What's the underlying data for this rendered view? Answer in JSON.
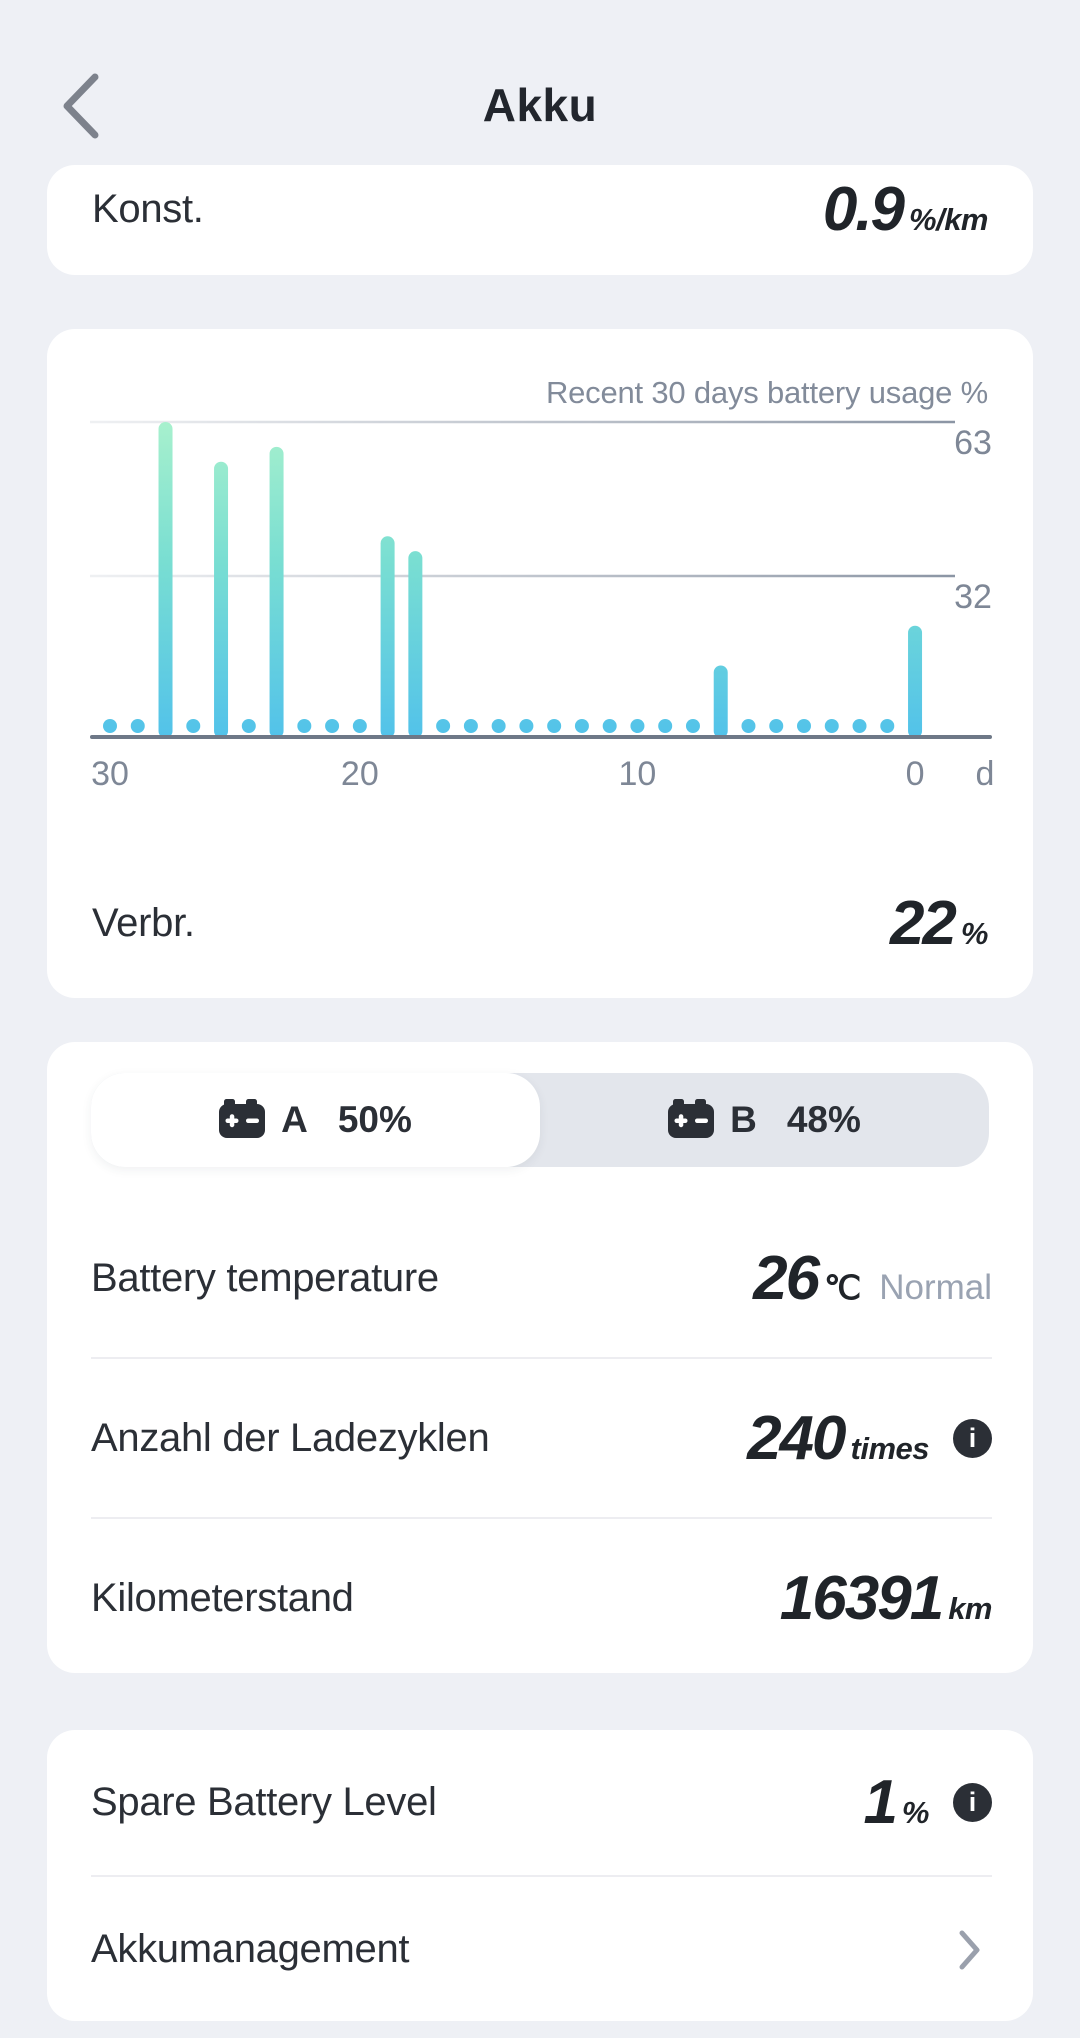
{
  "header": {
    "title": "Akku"
  },
  "top_card": {
    "label": "Konst.",
    "value": "0.9",
    "unit": "%/km"
  },
  "chart_card": {
    "title": "Recent 30 days battery usage %",
    "bottom_row": {
      "label": "Verbr.",
      "value": "22",
      "unit": "%"
    }
  },
  "chart_data": {
    "type": "bar",
    "title": "Recent 30 days battery usage %",
    "x_axis_unit_label": "d",
    "x_tick_labels": [
      "30",
      "20",
      "10",
      "0"
    ],
    "x_tick_days": [
      30,
      20,
      10,
      0
    ],
    "y_gridlines": [
      63,
      32
    ],
    "ylim": [
      0,
      63
    ],
    "days_ago": [
      29,
      28,
      27,
      26,
      25,
      24,
      23,
      22,
      21,
      20,
      19,
      18,
      17,
      16,
      15,
      14,
      13,
      12,
      11,
      10,
      9,
      8,
      7,
      6,
      5,
      4,
      3,
      2,
      1,
      0
    ],
    "values": [
      0,
      0,
      63,
      0,
      55,
      0,
      58,
      0,
      0,
      0,
      40,
      37,
      0,
      0,
      0,
      0,
      0,
      0,
      0,
      0,
      0,
      0,
      14,
      0,
      0,
      0,
      0,
      0,
      0,
      22
    ],
    "legend_position": "top-right",
    "grid": true,
    "colors": {
      "bar_gradient_top": "#a9f1cd",
      "bar_gradient_mid": "#79ded2",
      "bar_gradient_bottom": "#52c2ea",
      "axis": "#6e7887",
      "tick_label": "#7e8796"
    }
  },
  "battery_card": {
    "toggle": {
      "selected": "A",
      "options": [
        {
          "id": "A",
          "label": "A",
          "percent": "50%"
        },
        {
          "id": "B",
          "label": "B",
          "percent": "48%"
        }
      ]
    },
    "rows": [
      {
        "label": "Battery temperature",
        "value": "26",
        "unit": "℃",
        "status": "Normal"
      },
      {
        "label": "Anzahl der Ladezyklen",
        "value": "240",
        "unit": "times",
        "has_info": true
      },
      {
        "label": "Kilometerstand",
        "value": "16391",
        "unit": "km"
      }
    ]
  },
  "bottom_card": {
    "rows": [
      {
        "label": "Spare Battery Level",
        "value": "1",
        "unit": "%",
        "has_info": true
      },
      {
        "label": "Akkumanagement",
        "has_chevron": true
      }
    ]
  },
  "icons": {
    "back": "chevron-left",
    "battery": "car-battery",
    "info": "info-circle",
    "forward": "chevron-right"
  },
  "colors": {
    "page_bg": "#eef0f5",
    "card_bg": "#ffffff",
    "toggle_bg": "#e3e6ec",
    "divider": "#ededf1",
    "label_text": "#2b2f36",
    "value_text": "#202429",
    "muted_text": "#9aa3b2",
    "header_icon": "#7d828c"
  }
}
